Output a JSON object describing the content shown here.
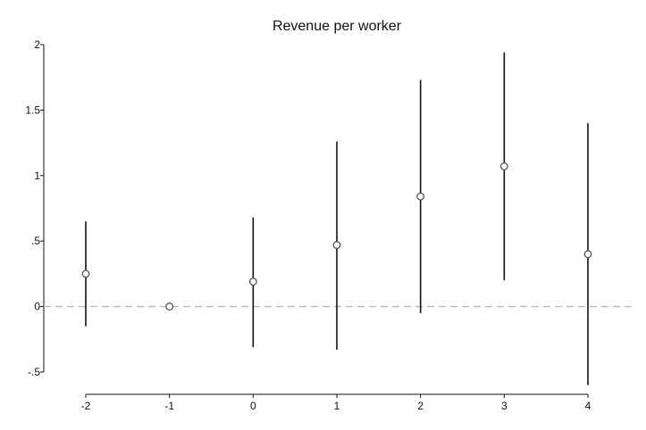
{
  "chart_data": {
    "type": "scatter",
    "title": "Revenue per worker",
    "xlabel": "",
    "ylabel": "",
    "x": [
      -2,
      -1,
      0,
      1,
      2,
      3,
      4
    ],
    "x_tick_labels": [
      "-2",
      "-1",
      "0",
      "1",
      "2",
      "3",
      "4"
    ],
    "y_tick_values": [
      -0.5,
      0,
      0.5,
      1,
      1.5,
      2
    ],
    "y_tick_labels": [
      "-.5",
      "0",
      ".5",
      "1",
      "1.5",
      "2"
    ],
    "ylim": [
      -0.5,
      2
    ],
    "xlim": [
      -2.5,
      4.5
    ],
    "series": [
      {
        "estimate": [
          0.25,
          0.0,
          0.19,
          0.47,
          0.84,
          1.07,
          0.4
        ],
        "ci_low": [
          -0.15,
          null,
          -0.31,
          -0.33,
          -0.05,
          0.2,
          -0.6
        ],
        "ci_high": [
          0.65,
          null,
          0.68,
          1.26,
          1.73,
          1.94,
          1.4
        ]
      }
    ],
    "reference_line": {
      "y": 0,
      "style": "dashed",
      "color": "#bdbdbd"
    },
    "grid": false,
    "marker": "hollow-circle",
    "colors": {
      "ci": "#111111",
      "marker": "#555555",
      "reference": "#bdbdbd"
    }
  }
}
